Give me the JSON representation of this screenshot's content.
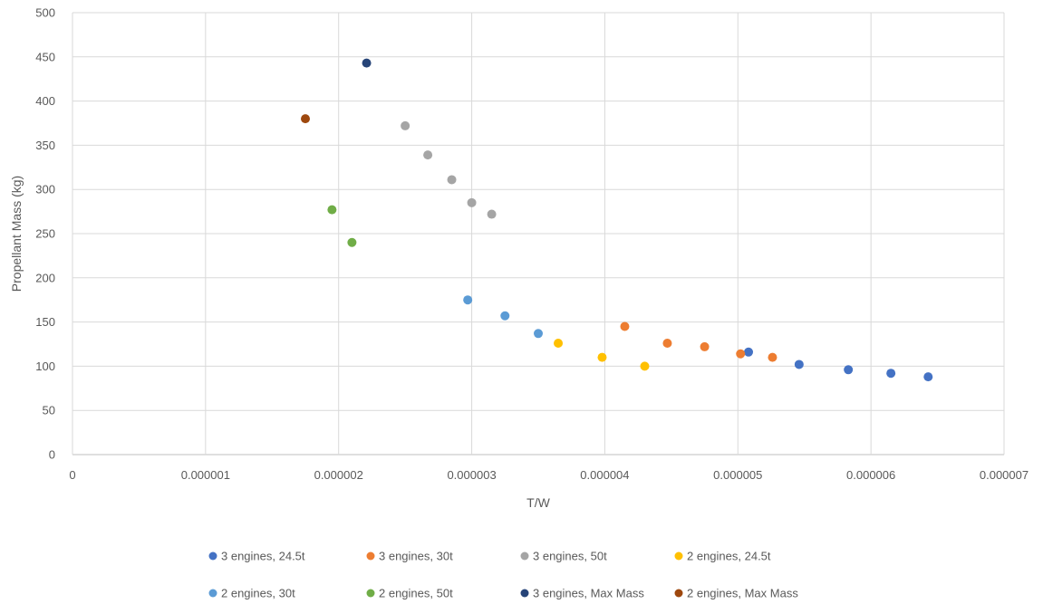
{
  "chart_data": {
    "type": "scatter",
    "title": "",
    "xlabel": "T/W",
    "ylabel": "Propellant Mass (kg)",
    "xlim": [
      0,
      7e-06
    ],
    "ylim": [
      0,
      500
    ],
    "x_ticks": [
      "0",
      "0.000001",
      "0.000002",
      "0.000003",
      "0.000004",
      "0.000005",
      "0.000006",
      "0.000007"
    ],
    "y_ticks": [
      "0",
      "50",
      "100",
      "150",
      "200",
      "250",
      "300",
      "350",
      "400",
      "450",
      "500"
    ],
    "grid": true,
    "legend_position": "bottom",
    "series": [
      {
        "name": "3 engines, 24.5t",
        "color": "#4472c4",
        "points": [
          [
            5.08e-06,
            116
          ],
          [
            5.46e-06,
            102
          ],
          [
            5.83e-06,
            96
          ],
          [
            6.15e-06,
            92
          ],
          [
            6.43e-06,
            88
          ]
        ]
      },
      {
        "name": "3 engines, 30t",
        "color": "#ed7d31",
        "points": [
          [
            4.15e-06,
            145
          ],
          [
            4.47e-06,
            126
          ],
          [
            4.75e-06,
            122
          ],
          [
            5.02e-06,
            114
          ],
          [
            5.26e-06,
            110
          ]
        ]
      },
      {
        "name": "3 engines, 50t",
        "color": "#a5a5a5",
        "points": [
          [
            2.5e-06,
            372
          ],
          [
            2.67e-06,
            339
          ],
          [
            2.85e-06,
            311
          ],
          [
            3e-06,
            285
          ],
          [
            3.15e-06,
            272
          ]
        ]
      },
      {
        "name": "2 engines, 24.5t",
        "color": "#ffc000",
        "points": [
          [
            3.65e-06,
            126
          ],
          [
            3.98e-06,
            110
          ],
          [
            4.3e-06,
            100
          ]
        ]
      },
      {
        "name": "2 engines, 30t",
        "color": "#5b9bd5",
        "points": [
          [
            2.97e-06,
            175
          ],
          [
            3.25e-06,
            157
          ],
          [
            3.5e-06,
            137
          ]
        ]
      },
      {
        "name": "2 engines, 50t",
        "color": "#70ad47",
        "points": [
          [
            1.95e-06,
            277
          ],
          [
            2.1e-06,
            240
          ]
        ]
      },
      {
        "name": "3 engines, Max Mass",
        "color": "#264478",
        "points": [
          [
            2.21e-06,
            443
          ]
        ]
      },
      {
        "name": "2 engines, Max Mass",
        "color": "#9e480e",
        "points": [
          [
            1.75e-06,
            380
          ]
        ]
      }
    ]
  }
}
